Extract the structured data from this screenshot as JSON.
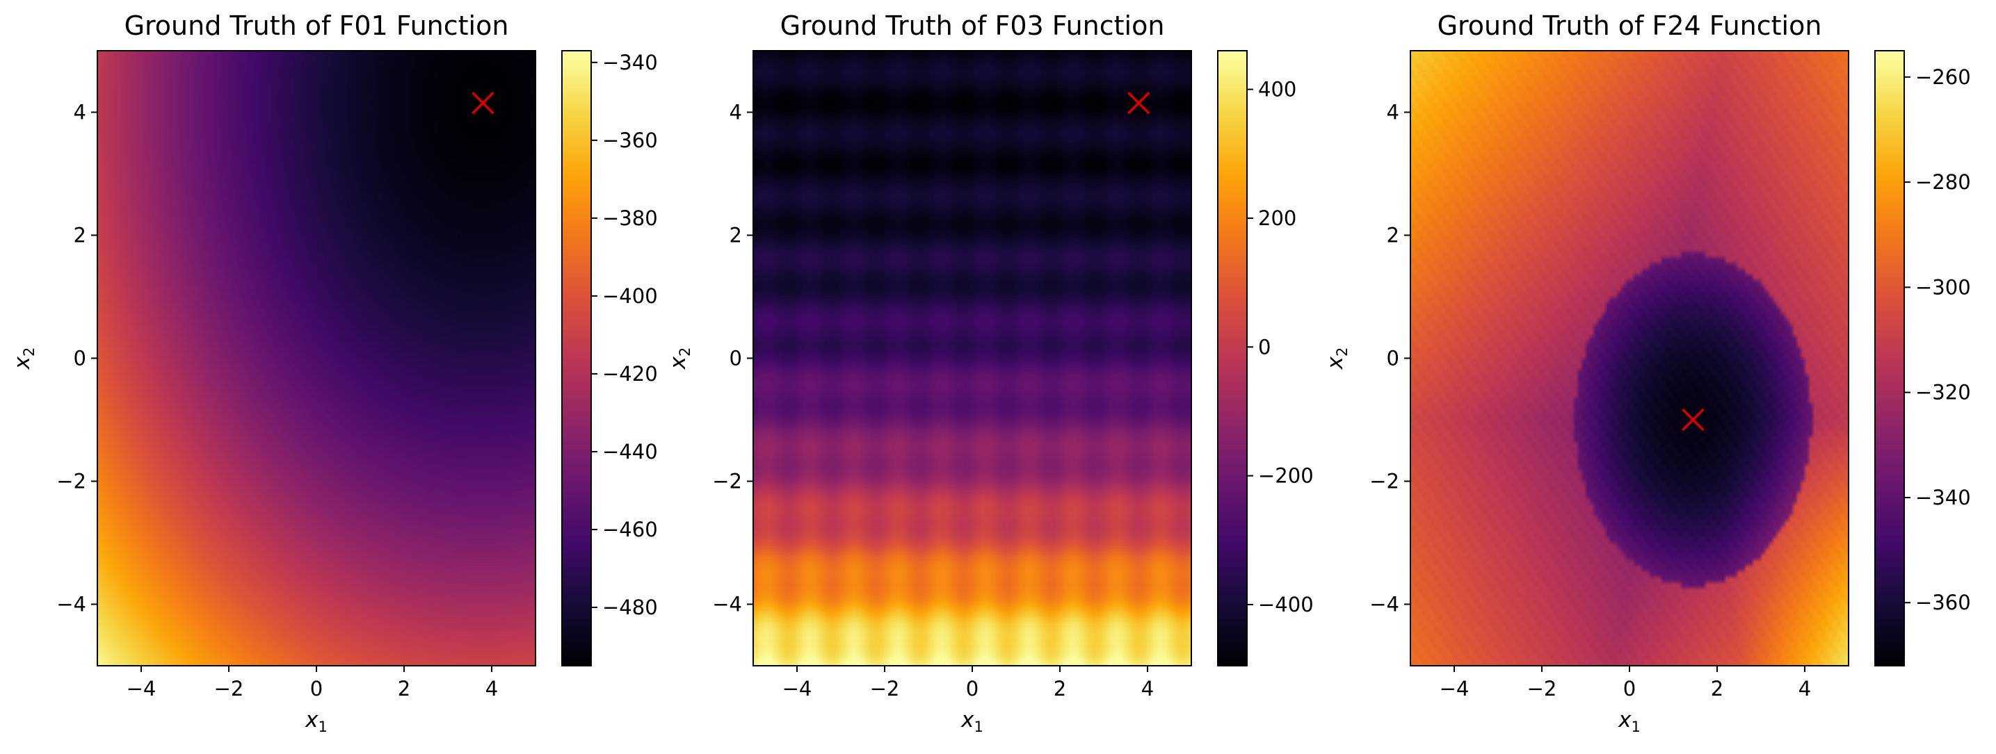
{
  "chart_data": [
    {
      "type": "heatmap",
      "title": "Ground Truth of F01 Function",
      "xlabel": "x1",
      "ylabel": "x2",
      "xlim": [
        -5,
        5
      ],
      "ylim": [
        -5,
        5
      ],
      "x_ticks": [
        -4,
        -2,
        0,
        2,
        4
      ],
      "y_ticks": [
        -4,
        -2,
        0,
        2,
        4
      ],
      "x_tick_labels": [
        "−4",
        "−2",
        "0",
        "2",
        "4"
      ],
      "y_tick_labels": [
        "−4",
        "−2",
        "0",
        "2",
        "4"
      ],
      "colormap": "inferno",
      "colorbar": {
        "range": [
          -495,
          -337
        ],
        "ticks": [
          -340,
          -360,
          -380,
          -400,
          -420,
          -440,
          -460,
          -480
        ],
        "tick_labels": [
          "−340",
          "−360",
          "−380",
          "−400",
          "−420",
          "−440",
          "−460",
          "−480"
        ]
      },
      "marker": {
        "symbol": "x",
        "color": "#d40000",
        "x": 3.8,
        "y": 4.15
      },
      "surface": {
        "kind": "sphere",
        "center": [
          3.8,
          4.15
        ],
        "min": -495,
        "max": -337
      }
    },
    {
      "type": "heatmap",
      "title": "Ground Truth of F03 Function",
      "xlabel": "x1",
      "ylabel": "x2",
      "xlim": [
        -5,
        5
      ],
      "ylim": [
        -5,
        5
      ],
      "x_ticks": [
        -4,
        -2,
        0,
        2,
        4
      ],
      "y_ticks": [
        -4,
        -2,
        0,
        2,
        4
      ],
      "x_tick_labels": [
        "−4",
        "−2",
        "0",
        "2",
        "4"
      ],
      "y_tick_labels": [
        "−4",
        "−2",
        "0",
        "2",
        "4"
      ],
      "colormap": "inferno",
      "colorbar": {
        "range": [
          -495,
          460
        ],
        "ticks": [
          400,
          200,
          0,
          -200,
          -400
        ],
        "tick_labels": [
          "400",
          "200",
          "0",
          "−200",
          "−400"
        ]
      },
      "marker": {
        "symbol": "x",
        "color": "#d40000",
        "x": 3.8,
        "y": 4.15
      },
      "surface": {
        "kind": "rastrigin-like",
        "center": [
          3.8,
          4.15
        ],
        "min": -495,
        "max": 460
      }
    },
    {
      "type": "heatmap",
      "title": "Ground Truth of F24 Function",
      "xlabel": "x1",
      "ylabel": "x2",
      "xlim": [
        -5,
        5
      ],
      "ylim": [
        -5,
        5
      ],
      "x_ticks": [
        -4,
        -2,
        0,
        2,
        4
      ],
      "y_ticks": [
        -4,
        -2,
        0,
        2,
        4
      ],
      "x_tick_labels": [
        "−4",
        "−2",
        "0",
        "2",
        "4"
      ],
      "y_tick_labels": [
        "−4",
        "−2",
        "0",
        "2",
        "4"
      ],
      "colormap": "inferno",
      "colorbar": {
        "range": [
          -372,
          -255
        ],
        "ticks": [
          -260,
          -280,
          -300,
          -320,
          -340,
          -360
        ],
        "tick_labels": [
          "−260",
          "−280",
          "−300",
          "−320",
          "−340",
          "−360"
        ]
      },
      "marker": {
        "symbol": "x",
        "color": "#d40000",
        "x": 1.45,
        "y": -1.0
      },
      "surface": {
        "kind": "lunacek-like",
        "center": [
          1.45,
          -1.0
        ],
        "min": -372,
        "max": -255
      }
    }
  ]
}
